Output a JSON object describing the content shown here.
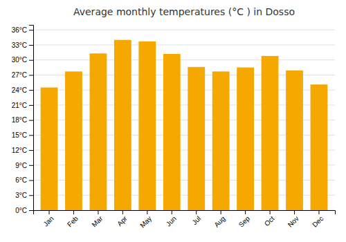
{
  "chart_data": {
    "type": "bar",
    "title": "Average monthly temperatures (°C ) in Dosso",
    "categories": [
      "Jan",
      "Feb",
      "Mar",
      "Apr",
      "May",
      "Jun",
      "Jul",
      "Aug",
      "Sep",
      "Oct",
      "Nov",
      "Dec"
    ],
    "values": [
      24.5,
      27.7,
      31.3,
      34.0,
      33.7,
      31.2,
      28.6,
      27.7,
      28.5,
      30.8,
      27.9,
      25.1
    ],
    "color": "#F5A800",
    "ylim": [
      0,
      37
    ],
    "yticks": [
      {
        "value": 0,
        "label": "0°C"
      },
      {
        "value": 3,
        "label": "3°C"
      },
      {
        "value": 6,
        "label": "6°C"
      },
      {
        "value": 9,
        "label": "9°C"
      },
      {
        "value": 12,
        "label": "12°C"
      },
      {
        "value": 15,
        "label": "15°C"
      },
      {
        "value": 18,
        "label": "18°C"
      },
      {
        "value": 21,
        "label": "21°C"
      },
      {
        "value": 24,
        "label": "24°C"
      },
      {
        "value": 27,
        "label": "27°C"
      },
      {
        "value": 30,
        "label": "30°C"
      },
      {
        "value": 33,
        "label": "33°C"
      },
      {
        "value": 36,
        "label": "36°C"
      }
    ],
    "grid": true
  }
}
